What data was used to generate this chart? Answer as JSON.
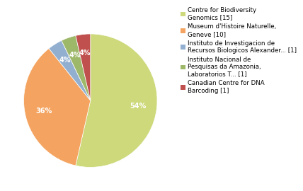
{
  "labels": [
    "Centre for Biodiversity\nGenomics [15]",
    "Museum d'Histoire Naturelle,\nGeneve [10]",
    "Instituto de Investigacion de\nRecursos Biologicos Alexander... [1]",
    "Instituto Nacional de\nPesquisas da Amazonia,\nLaboratorios T... [1]",
    "Canadian Centre for DNA\nBarcoding [1]"
  ],
  "values": [
    15,
    10,
    1,
    1,
    1
  ],
  "colors": [
    "#cdd97a",
    "#f4a460",
    "#92afd0",
    "#9eb86a",
    "#c0504d"
  ],
  "startangle": 90,
  "background_color": "#ffffff",
  "fontsize_pct": 7.0,
  "fontsize_legend": 6.2,
  "pctdistance": 0.72
}
